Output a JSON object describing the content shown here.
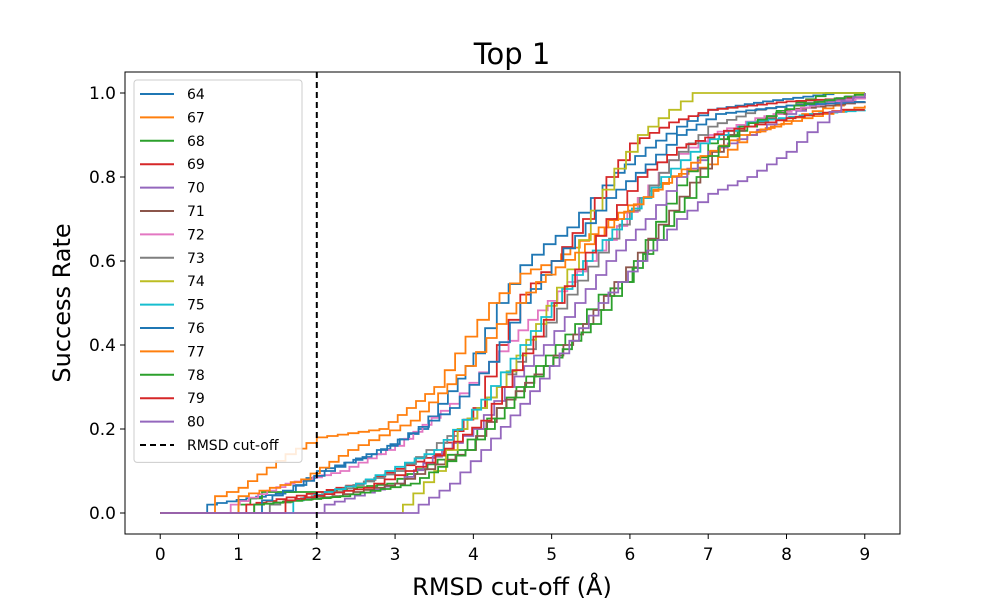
{
  "chart_data": {
    "type": "line",
    "title": "Top 1",
    "xlabel": "RMSD cut-off (Å)",
    "ylabel": "Success Rate",
    "xlim": [
      -0.45,
      9.45
    ],
    "ylim": [
      -0.05,
      1.05
    ],
    "xticks": [
      0,
      1,
      2,
      3,
      4,
      5,
      6,
      7,
      8,
      9
    ],
    "yticks": [
      0.0,
      0.2,
      0.4,
      0.6,
      0.8,
      1.0
    ],
    "xtick_labels": [
      "0",
      "1",
      "2",
      "3",
      "4",
      "5",
      "6",
      "7",
      "8",
      "9"
    ],
    "ytick_labels": [
      "0.0",
      "0.2",
      "0.4",
      "0.6",
      "0.8",
      "1.0"
    ],
    "grid": false,
    "legend_position": "upper-left",
    "cutoff_line": {
      "x": 2,
      "label": "RMSD cut-off",
      "color": "#000000",
      "style": "dashed"
    },
    "series": [
      {
        "name": "64",
        "color": "#1f77b4",
        "points": [
          [
            0,
            0
          ],
          [
            0.6,
            0
          ],
          [
            0.6,
            0.02
          ],
          [
            1.6,
            0.05
          ],
          [
            2.0,
            0.1
          ],
          [
            2.7,
            0.14
          ],
          [
            3.3,
            0.2
          ],
          [
            3.8,
            0.32
          ],
          [
            4.0,
            0.38
          ],
          [
            4.3,
            0.5
          ],
          [
            4.6,
            0.59
          ],
          [
            4.9,
            0.64
          ],
          [
            5.2,
            0.68
          ],
          [
            5.5,
            0.75
          ],
          [
            5.8,
            0.81
          ],
          [
            6.2,
            0.87
          ],
          [
            6.6,
            0.92
          ],
          [
            7.0,
            0.96
          ],
          [
            7.7,
            0.98
          ],
          [
            8.6,
            1.0
          ],
          [
            9.0,
            1.0
          ]
        ]
      },
      {
        "name": "67",
        "color": "#ff7f0e",
        "points": [
          [
            0,
            0
          ],
          [
            0.7,
            0
          ],
          [
            0.7,
            0.04
          ],
          [
            1.0,
            0.06
          ],
          [
            1.6,
            0.14
          ],
          [
            2.0,
            0.18
          ],
          [
            2.8,
            0.2
          ],
          [
            3.5,
            0.3
          ],
          [
            3.9,
            0.42
          ],
          [
            4.2,
            0.5
          ],
          [
            4.6,
            0.57
          ],
          [
            5.0,
            0.6
          ],
          [
            5.6,
            0.68
          ],
          [
            6.1,
            0.75
          ],
          [
            6.5,
            0.8
          ],
          [
            7.0,
            0.83
          ],
          [
            7.5,
            0.9
          ],
          [
            8.2,
            0.95
          ],
          [
            8.6,
            0.97
          ],
          [
            9.0,
            1.0
          ]
        ]
      },
      {
        "name": "68",
        "color": "#2ca02c",
        "points": [
          [
            0,
            0
          ],
          [
            1.0,
            0
          ],
          [
            1.0,
            0.02
          ],
          [
            1.3,
            0.05
          ],
          [
            2.0,
            0.05
          ],
          [
            2.9,
            0.07
          ],
          [
            3.8,
            0.15
          ],
          [
            4.3,
            0.25
          ],
          [
            4.8,
            0.35
          ],
          [
            5.3,
            0.45
          ],
          [
            5.6,
            0.52
          ],
          [
            5.9,
            0.55
          ],
          [
            6.2,
            0.65
          ],
          [
            6.6,
            0.78
          ],
          [
            7.0,
            0.88
          ],
          [
            7.5,
            0.92
          ],
          [
            8.0,
            0.97
          ],
          [
            8.5,
            1.0
          ],
          [
            9.0,
            1.0
          ]
        ]
      },
      {
        "name": "69",
        "color": "#d62728",
        "points": [
          [
            0,
            0
          ],
          [
            1.1,
            0
          ],
          [
            1.1,
            0.02
          ],
          [
            2.0,
            0.05
          ],
          [
            2.5,
            0.07
          ],
          [
            3.5,
            0.14
          ],
          [
            4.0,
            0.25
          ],
          [
            4.3,
            0.4
          ],
          [
            4.6,
            0.52
          ],
          [
            5.0,
            0.6
          ],
          [
            5.4,
            0.7
          ],
          [
            5.7,
            0.8
          ],
          [
            6.0,
            0.88
          ],
          [
            6.5,
            0.93
          ],
          [
            7.0,
            0.96
          ],
          [
            8.0,
            0.98
          ],
          [
            9.0,
            0.99
          ]
        ]
      },
      {
        "name": "70",
        "color": "#9467bd",
        "points": [
          [
            0,
            0
          ],
          [
            2.1,
            0
          ],
          [
            2.1,
            0.02
          ],
          [
            3.0,
            0.07
          ],
          [
            3.6,
            0.15
          ],
          [
            4.0,
            0.2
          ],
          [
            4.4,
            0.3
          ],
          [
            4.9,
            0.4
          ],
          [
            5.3,
            0.5
          ],
          [
            5.7,
            0.6
          ],
          [
            6.2,
            0.7
          ],
          [
            6.6,
            0.8
          ],
          [
            7.0,
            0.86
          ],
          [
            7.5,
            0.9
          ],
          [
            8.0,
            0.95
          ],
          [
            8.5,
            0.98
          ],
          [
            9.0,
            0.99
          ]
        ]
      },
      {
        "name": "71",
        "color": "#8c564b",
        "points": [
          [
            0,
            0
          ],
          [
            1.2,
            0
          ],
          [
            1.2,
            0.02
          ],
          [
            2.2,
            0.04
          ],
          [
            3.0,
            0.07
          ],
          [
            3.9,
            0.15
          ],
          [
            4.3,
            0.25
          ],
          [
            4.9,
            0.35
          ],
          [
            5.4,
            0.45
          ],
          [
            5.8,
            0.55
          ],
          [
            6.1,
            0.62
          ],
          [
            6.5,
            0.72
          ],
          [
            6.9,
            0.82
          ],
          [
            7.2,
            0.9
          ],
          [
            8.0,
            0.96
          ],
          [
            9.0,
            0.98
          ]
        ]
      },
      {
        "name": "72",
        "color": "#e377c2",
        "points": [
          [
            0,
            0
          ],
          [
            0.9,
            0
          ],
          [
            0.9,
            0.02
          ],
          [
            1.6,
            0.07
          ],
          [
            2.3,
            0.1
          ],
          [
            3.0,
            0.16
          ],
          [
            3.7,
            0.26
          ],
          [
            4.2,
            0.36
          ],
          [
            4.7,
            0.46
          ],
          [
            5.2,
            0.55
          ],
          [
            5.7,
            0.65
          ],
          [
            6.1,
            0.75
          ],
          [
            6.5,
            0.84
          ],
          [
            7.0,
            0.9
          ],
          [
            7.6,
            0.94
          ],
          [
            8.3,
            0.97
          ],
          [
            9.0,
            0.99
          ]
        ]
      },
      {
        "name": "73",
        "color": "#7f7f7f",
        "points": [
          [
            0,
            0
          ],
          [
            1.4,
            0
          ],
          [
            1.4,
            0.02
          ],
          [
            2.2,
            0.05
          ],
          [
            3.0,
            0.1
          ],
          [
            3.8,
            0.2
          ],
          [
            4.3,
            0.3
          ],
          [
            4.8,
            0.42
          ],
          [
            5.2,
            0.52
          ],
          [
            5.6,
            0.62
          ],
          [
            6.0,
            0.72
          ],
          [
            6.5,
            0.84
          ],
          [
            7.0,
            0.92
          ],
          [
            7.6,
            0.96
          ],
          [
            8.4,
            0.98
          ],
          [
            9.0,
            1.0
          ]
        ]
      },
      {
        "name": "74",
        "color": "#bcbd22",
        "points": [
          [
            0,
            0
          ],
          [
            3.1,
            0
          ],
          [
            3.1,
            0.02
          ],
          [
            3.5,
            0.1
          ],
          [
            3.8,
            0.2
          ],
          [
            4.3,
            0.3
          ],
          [
            4.8,
            0.45
          ],
          [
            5.2,
            0.58
          ],
          [
            5.5,
            0.72
          ],
          [
            5.8,
            0.82
          ],
          [
            6.1,
            0.9
          ],
          [
            6.5,
            0.96
          ],
          [
            6.8,
            1.0
          ],
          [
            9.0,
            1.0
          ]
        ]
      },
      {
        "name": "75",
        "color": "#17becf",
        "points": [
          [
            0,
            0
          ],
          [
            1.7,
            0
          ],
          [
            1.7,
            0.03
          ],
          [
            2.5,
            0.07
          ],
          [
            3.5,
            0.15
          ],
          [
            4.1,
            0.27
          ],
          [
            4.6,
            0.4
          ],
          [
            5.0,
            0.5
          ],
          [
            5.4,
            0.6
          ],
          [
            5.9,
            0.7
          ],
          [
            6.4,
            0.8
          ],
          [
            6.9,
            0.88
          ],
          [
            7.5,
            0.93
          ],
          [
            8.3,
            0.95
          ],
          [
            9.0,
            0.96
          ]
        ]
      },
      {
        "name": "76",
        "color": "#1f77b4",
        "points": [
          [
            0,
            0
          ],
          [
            1.3,
            0
          ],
          [
            1.3,
            0.03
          ],
          [
            2.1,
            0.1
          ],
          [
            2.9,
            0.16
          ],
          [
            3.7,
            0.25
          ],
          [
            4.2,
            0.36
          ],
          [
            4.6,
            0.5
          ],
          [
            5.0,
            0.6
          ],
          [
            5.3,
            0.66
          ],
          [
            5.7,
            0.75
          ],
          [
            6.2,
            0.83
          ],
          [
            6.6,
            0.9
          ],
          [
            7.1,
            0.95
          ],
          [
            8.0,
            0.97
          ],
          [
            9.0,
            0.98
          ]
        ]
      },
      {
        "name": "77",
        "color": "#ff7f0e",
        "points": [
          [
            0,
            0
          ],
          [
            1.0,
            0
          ],
          [
            1.0,
            0.04
          ],
          [
            1.8,
            0.08
          ],
          [
            2.4,
            0.15
          ],
          [
            3.2,
            0.22
          ],
          [
            3.9,
            0.35
          ],
          [
            4.3,
            0.45
          ],
          [
            4.8,
            0.55
          ],
          [
            5.3,
            0.62
          ],
          [
            5.8,
            0.7
          ],
          [
            6.3,
            0.77
          ],
          [
            6.9,
            0.85
          ],
          [
            7.4,
            0.9
          ],
          [
            8.2,
            0.94
          ],
          [
            9.0,
            0.97
          ]
        ]
      },
      {
        "name": "78",
        "color": "#2ca02c",
        "points": [
          [
            0,
            0
          ],
          [
            1.2,
            0
          ],
          [
            1.2,
            0.02
          ],
          [
            2.3,
            0.04
          ],
          [
            3.2,
            0.07
          ],
          [
            3.9,
            0.15
          ],
          [
            4.4,
            0.25
          ],
          [
            4.9,
            0.35
          ],
          [
            5.5,
            0.45
          ],
          [
            5.9,
            0.55
          ],
          [
            6.3,
            0.65
          ],
          [
            6.7,
            0.75
          ],
          [
            7.0,
            0.85
          ],
          [
            7.4,
            0.92
          ],
          [
            8.1,
            0.97
          ],
          [
            9.0,
            1.0
          ]
        ]
      },
      {
        "name": "79",
        "color": "#d62728",
        "points": [
          [
            0,
            0
          ],
          [
            1.6,
            0
          ],
          [
            1.6,
            0.03
          ],
          [
            2.6,
            0.06
          ],
          [
            3.4,
            0.12
          ],
          [
            4.1,
            0.22
          ],
          [
            4.5,
            0.34
          ],
          [
            4.9,
            0.46
          ],
          [
            5.3,
            0.58
          ],
          [
            5.7,
            0.7
          ],
          [
            6.1,
            0.8
          ],
          [
            6.6,
            0.87
          ],
          [
            7.2,
            0.91
          ],
          [
            8.0,
            0.94
          ],
          [
            8.7,
            0.96
          ],
          [
            9.0,
            0.96
          ]
        ]
      },
      {
        "name": "80",
        "color": "#9467bd",
        "points": [
          [
            0,
            0
          ],
          [
            3.3,
            0
          ],
          [
            3.3,
            0.02
          ],
          [
            3.7,
            0.07
          ],
          [
            4.1,
            0.15
          ],
          [
            4.6,
            0.26
          ],
          [
            5.1,
            0.38
          ],
          [
            5.6,
            0.5
          ],
          [
            6.1,
            0.6
          ],
          [
            6.6,
            0.7
          ],
          [
            7.0,
            0.76
          ],
          [
            7.5,
            0.8
          ],
          [
            8.0,
            0.86
          ],
          [
            8.4,
            0.93
          ],
          [
            8.7,
            0.98
          ],
          [
            9.0,
            1.0
          ]
        ]
      }
    ]
  }
}
